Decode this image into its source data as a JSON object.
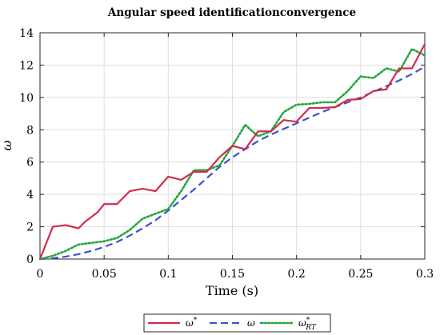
{
  "chart_data": {
    "type": "line",
    "title": "Angular speed identificationconvergence",
    "xlabel": "Time (s)",
    "ylabel": "ω",
    "xlim": [
      0,
      0.3
    ],
    "ylim": [
      0,
      14
    ],
    "xticks": [
      0,
      0.05,
      0.1,
      0.15,
      0.2,
      0.25,
      0.3
    ],
    "xtick_labels": [
      "0",
      "0.05",
      "0.1",
      "0.15",
      "0.2",
      "0.25",
      "0.3"
    ],
    "yticks": [
      0,
      2,
      4,
      6,
      8,
      10,
      12,
      14
    ],
    "ytick_labels": [
      "0",
      "2",
      "4",
      "6",
      "8",
      "10",
      "12",
      "14"
    ],
    "grid": true,
    "legend_position": "bottom-outside",
    "series": [
      {
        "name": "ω*",
        "name_base": "ω",
        "name_sup": "*",
        "name_sub": "",
        "color": "#d42a4f",
        "style": "solid",
        "x": [
          0,
          0.01,
          0.02,
          0.025,
          0.03,
          0.035,
          0.045,
          0.05,
          0.06,
          0.07,
          0.08,
          0.09,
          0.1,
          0.11,
          0.12,
          0.13,
          0.14,
          0.15,
          0.16,
          0.17,
          0.18,
          0.19,
          0.2,
          0.21,
          0.22,
          0.23,
          0.24,
          0.25,
          0.26,
          0.27,
          0.28,
          0.29,
          0.3
        ],
        "y": [
          0,
          2.0,
          2.1,
          2.0,
          1.9,
          2.3,
          2.9,
          3.4,
          3.4,
          4.2,
          4.35,
          4.2,
          5.1,
          4.9,
          5.4,
          5.4,
          6.3,
          7.0,
          6.8,
          7.9,
          7.9,
          8.6,
          8.5,
          9.35,
          9.35,
          9.4,
          9.85,
          9.9,
          10.4,
          10.5,
          11.8,
          11.8,
          13.3
        ]
      },
      {
        "name": "ω",
        "name_base": "ω",
        "name_sup": "",
        "name_sub": "",
        "color": "#3c52c8",
        "style": "dashed",
        "x": [
          0,
          0.01,
          0.02,
          0.03,
          0.04,
          0.05,
          0.06,
          0.07,
          0.08,
          0.09,
          0.1,
          0.11,
          0.12,
          0.13,
          0.14,
          0.15,
          0.16,
          0.17,
          0.18,
          0.19,
          0.2,
          0.21,
          0.22,
          0.23,
          0.24,
          0.25,
          0.26,
          0.27,
          0.28,
          0.29,
          0.3
        ],
        "y": [
          0,
          0.05,
          0.15,
          0.3,
          0.5,
          0.75,
          1.05,
          1.45,
          1.9,
          2.4,
          3.0,
          3.65,
          4.3,
          5.0,
          5.7,
          6.3,
          6.8,
          7.3,
          7.7,
          8.05,
          8.4,
          8.75,
          9.1,
          9.4,
          9.7,
          10.0,
          10.35,
          10.7,
          11.05,
          11.45,
          11.9
        ]
      },
      {
        "name": "ω*RT",
        "name_base": "ω",
        "name_sup": "*",
        "name_sub": "RT",
        "color": "#24a63a",
        "style": "dotted",
        "x": [
          0,
          0.01,
          0.02,
          0.03,
          0.04,
          0.05,
          0.06,
          0.07,
          0.08,
          0.09,
          0.1,
          0.11,
          0.12,
          0.13,
          0.14,
          0.15,
          0.16,
          0.17,
          0.18,
          0.19,
          0.2,
          0.21,
          0.22,
          0.23,
          0.24,
          0.25,
          0.26,
          0.27,
          0.28,
          0.29,
          0.3
        ],
        "y": [
          0,
          0.2,
          0.5,
          0.9,
          1.0,
          1.1,
          1.3,
          1.8,
          2.5,
          2.8,
          3.1,
          4.2,
          5.5,
          5.5,
          5.8,
          7.0,
          8.3,
          7.6,
          7.9,
          9.1,
          9.55,
          9.6,
          9.7,
          9.7,
          10.4,
          11.3,
          11.2,
          11.8,
          11.6,
          13.0,
          12.6
        ]
      }
    ]
  }
}
